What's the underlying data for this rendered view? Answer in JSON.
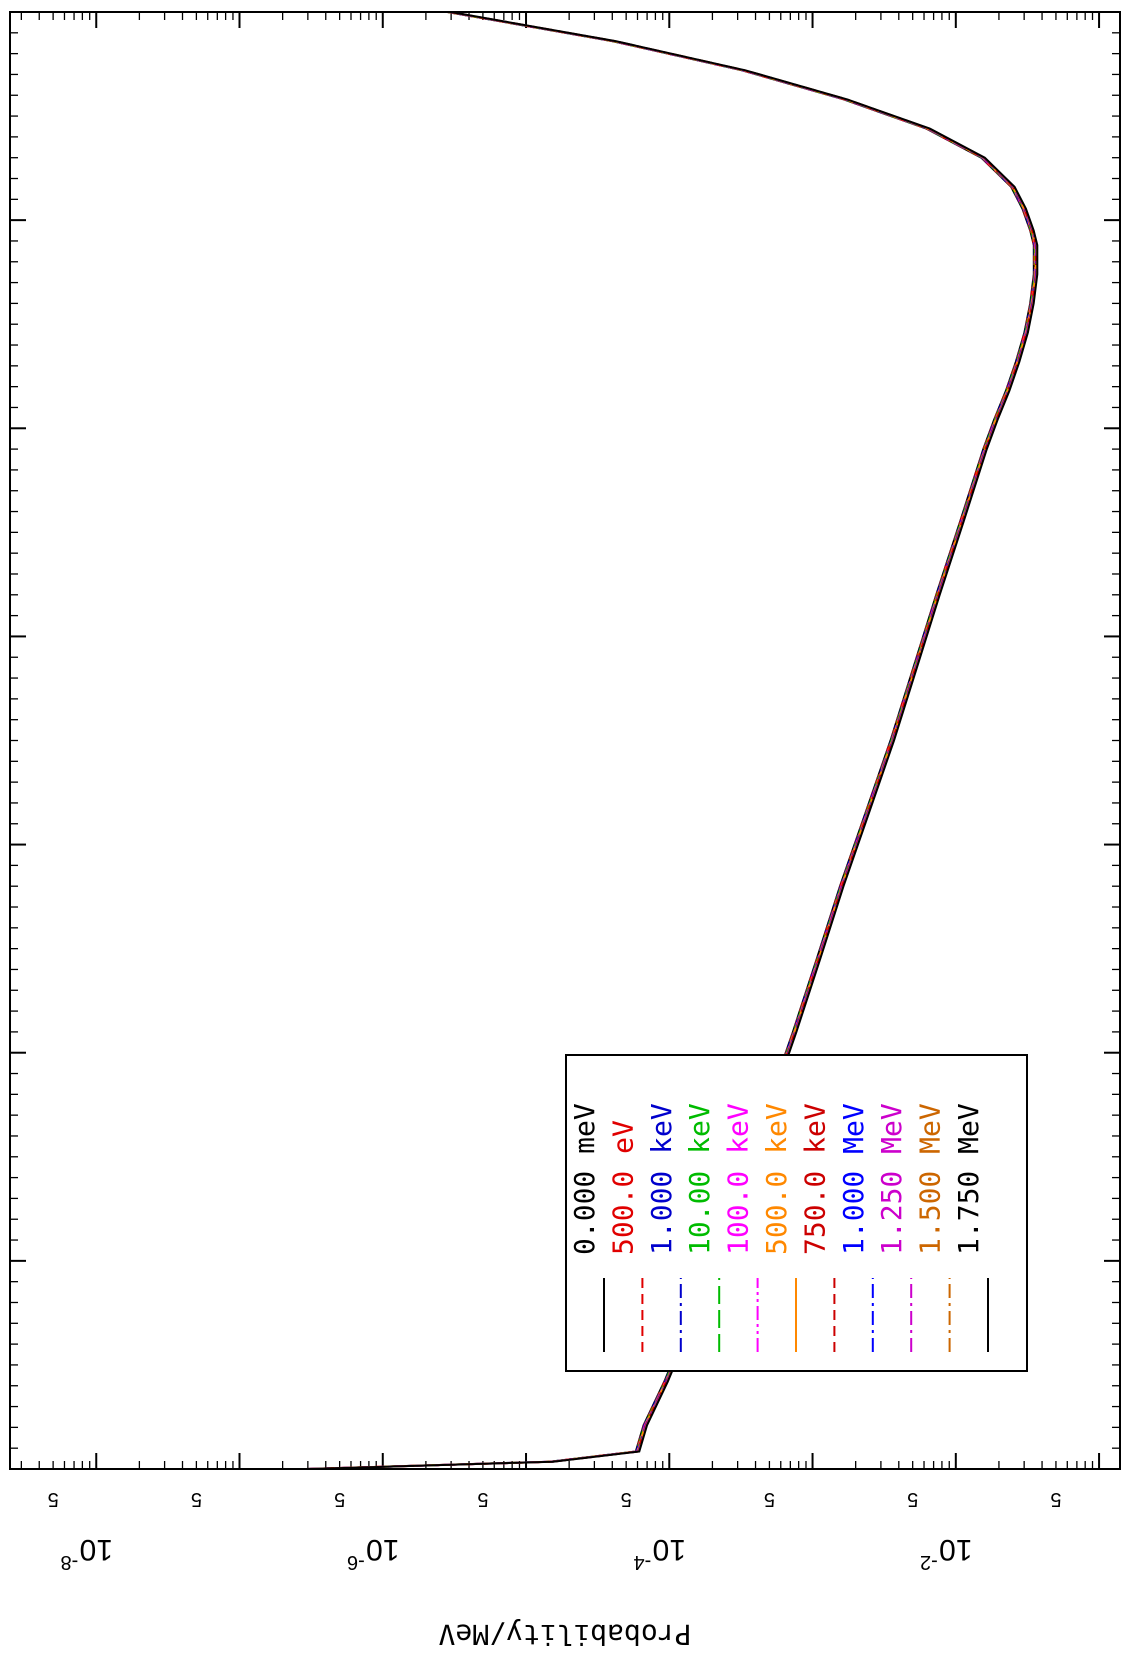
{
  "chart_data": {
    "type": "line",
    "orientation": "rotated-90",
    "ylabel": "Probability/MeV",
    "y_scale": "log",
    "y_decade_labels": [
      {
        "value": 0.01,
        "base": "10",
        "exponent": "-2"
      },
      {
        "value": 0.0001,
        "base": "10",
        "exponent": "-4"
      },
      {
        "value": 1e-06,
        "base": "10",
        "exponent": "-6"
      },
      {
        "value": 1e-08,
        "base": "10",
        "exponent": "-8"
      }
    ],
    "y_minor_labels": [
      {
        "value": 0.05,
        "label": "5"
      },
      {
        "value": 0.005,
        "label": "5"
      },
      {
        "value": 0.0005,
        "label": "5"
      },
      {
        "value": 5e-05,
        "label": "5"
      },
      {
        "value": 5e-06,
        "label": "5"
      },
      {
        "value": 5e-07,
        "label": "5"
      },
      {
        "value": 5e-08,
        "label": "5"
      },
      {
        "value": 5e-09,
        "label": "5"
      }
    ],
    "ylim": [
      2.5e-09,
      0.14
    ],
    "x_range": [
      0,
      1
    ],
    "legend": {
      "placement": "bottom-left"
    },
    "series": [
      {
        "name": "0.000 meV",
        "color": "#000000",
        "dash": "solid"
      },
      {
        "name": "500.0 eV",
        "color": "#e00000",
        "dash": "dashed"
      },
      {
        "name": "1.000 keV",
        "color": "#0000cc",
        "dash": "dashdot"
      },
      {
        "name": "10.00 keV",
        "color": "#00bb00",
        "dash": "longdash"
      },
      {
        "name": "100.0 keV",
        "color": "#ff00ff",
        "dash": "dashdotdot"
      },
      {
        "name": "500.0 keV",
        "color": "#ff8800",
        "dash": "solid"
      },
      {
        "name": "750.0 keV",
        "color": "#cc0000",
        "dash": "dashed"
      },
      {
        "name": "1.000 MeV",
        "color": "#0000ff",
        "dash": "dashdot"
      },
      {
        "name": "1.250 MeV",
        "color": "#cc00cc",
        "dash": "dashdot"
      },
      {
        "name": "1.500 MeV",
        "color": "#cc6600",
        "dash": "dashdot"
      },
      {
        "name": "1.750 MeV",
        "color": "#000000",
        "dash": "solid"
      }
    ],
    "curve": {
      "x": [
        0.0,
        0.005,
        0.012,
        0.03,
        0.06,
        0.1,
        0.15,
        0.2,
        0.25,
        0.3,
        0.35,
        0.4,
        0.45,
        0.5,
        0.55,
        0.6,
        0.65,
        0.7,
        0.72,
        0.74,
        0.76,
        0.78,
        0.8,
        0.82,
        0.84,
        0.85,
        0.865,
        0.88,
        0.9,
        0.92,
        0.94,
        0.96,
        0.98,
        1.0
      ],
      "y": [
        3e-07,
        1.5e-05,
        6e-05,
        6.8e-05,
        9.5e-05,
        0.00014,
        0.00022,
        0.00033,
        0.0005,
        0.00075,
        0.0011,
        0.0016,
        0.0024,
        0.0036,
        0.0052,
        0.0075,
        0.011,
        0.016,
        0.019,
        0.023,
        0.027,
        0.031,
        0.034,
        0.036,
        0.036,
        0.034,
        0.03,
        0.025,
        0.0155,
        0.0064,
        0.0017,
        0.00033,
        4.1e-05,
        2.9e-06
      ]
    }
  }
}
